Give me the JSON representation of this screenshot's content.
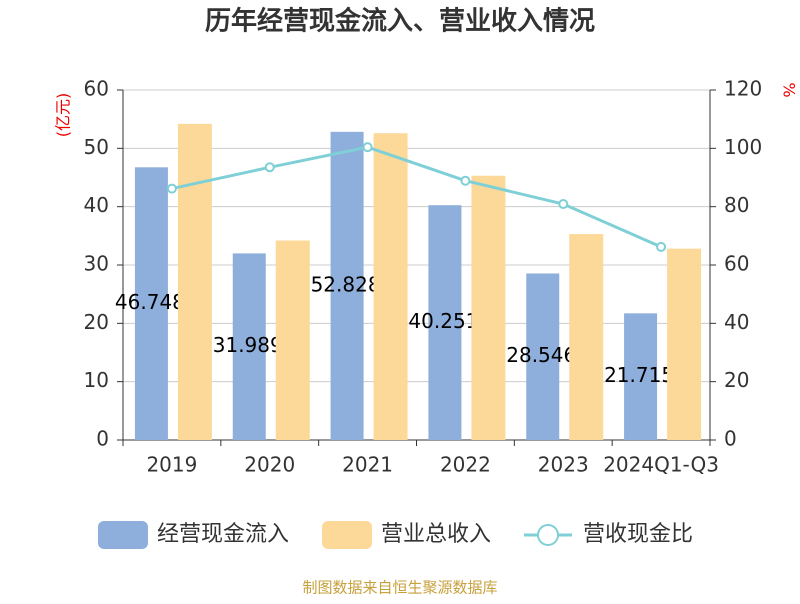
{
  "chart_data": {
    "type": "bar",
    "title": "历年经营现金流入、营业收入情况",
    "ylabel": "(亿元)",
    "y2label": "%",
    "categories": [
      "2019",
      "2020",
      "2021",
      "2022",
      "2023",
      "2024Q1-Q3"
    ],
    "series": [
      {
        "name": "经营现金流入",
        "color": "#8eaedb",
        "values": [
          46.748,
          31.989,
          52.828,
          40.251,
          28.546,
          21.715
        ],
        "show_labels": true
      },
      {
        "name": "营业总收入",
        "color": "#fdd999",
        "values": [
          54.2,
          34.2,
          52.6,
          45.3,
          35.3,
          32.8
        ]
      },
      {
        "name": "营收现金比",
        "color": "#7fd0d6",
        "type": "line",
        "axis": "y2",
        "values": [
          86.2,
          93.5,
          100.4,
          88.9,
          80.9,
          66.2
        ]
      }
    ],
    "ylim": [
      0,
      60
    ],
    "yticks": [
      0,
      10,
      20,
      30,
      40,
      50,
      60
    ],
    "y2lim": [
      0,
      120
    ],
    "y2ticks": [
      0,
      20,
      40,
      60,
      80,
      100,
      120
    ],
    "grid": true,
    "source": "制图数据来自恒生聚源数据库"
  }
}
